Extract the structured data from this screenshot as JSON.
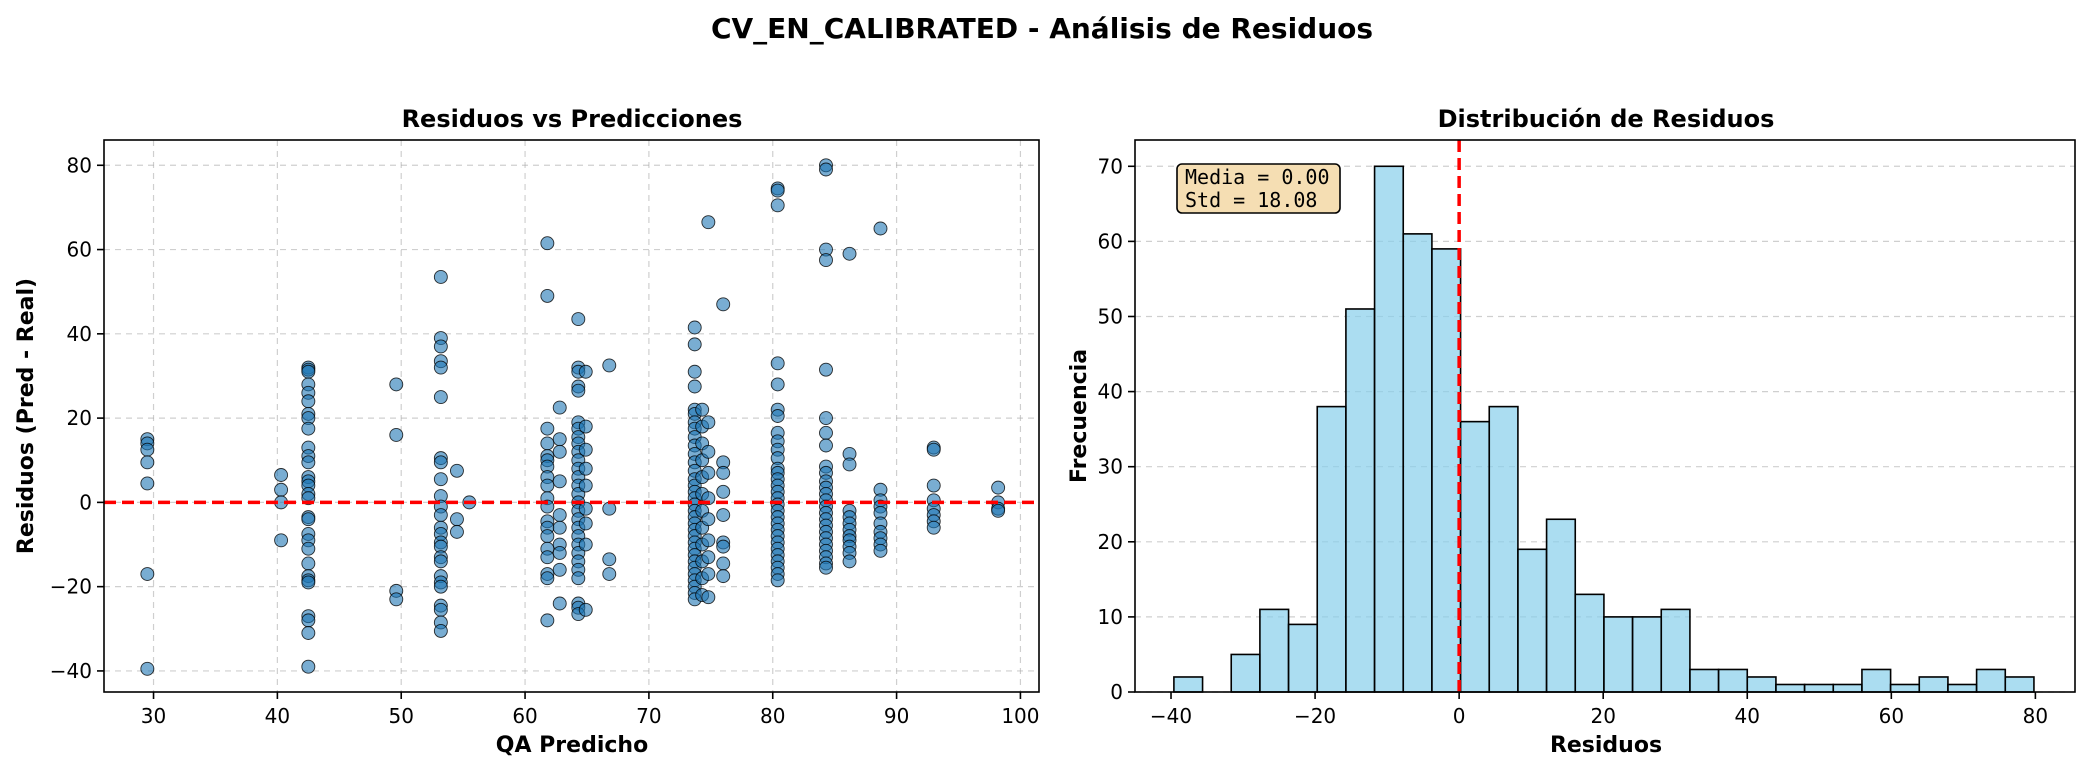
{
  "figure": {
    "suptitle": "CV_EN_CALIBRATED - Análisis de Residuos"
  },
  "colors": {
    "scatter": "#1f77b4",
    "hist_fill": "#87CEEB",
    "zero_line": "#ff0000",
    "stats_box": "#f5deb3"
  },
  "chart_data": [
    {
      "type": "scatter",
      "title": "Residuos vs Predicciones",
      "xlabel": "QA Predicho",
      "ylabel": "Residuos (Pred - Real)",
      "xlim": [
        26,
        101.5
      ],
      "ylim": [
        -45,
        86
      ],
      "xticks": [
        30,
        40,
        50,
        60,
        70,
        80,
        90,
        100
      ],
      "xtick_labels": [
        "30",
        "40",
        "50",
        "60",
        "70",
        "80",
        "90",
        "100"
      ],
      "yticks": [
        -40,
        -20,
        0,
        20,
        40,
        60,
        80
      ],
      "ytick_labels": [
        "−40",
        "−20",
        "0",
        "20",
        "40",
        "60",
        "80"
      ],
      "grid": true,
      "reference_line": {
        "y": 0,
        "style": "dashed",
        "color": "#ff0000"
      },
      "points": [
        [
          29.5,
          15
        ],
        [
          29.5,
          14
        ],
        [
          29.5,
          12.5
        ],
        [
          29.5,
          9.5
        ],
        [
          29.5,
          4.5
        ],
        [
          29.5,
          -17
        ],
        [
          29.5,
          -39.5
        ],
        [
          40.3,
          6.5
        ],
        [
          40.3,
          3
        ],
        [
          40.3,
          0
        ],
        [
          40.3,
          -9
        ],
        [
          42.5,
          32
        ],
        [
          42.5,
          31.5
        ],
        [
          42.5,
          31
        ],
        [
          42.5,
          28
        ],
        [
          42.5,
          26
        ],
        [
          42.5,
          24
        ],
        [
          42.5,
          21
        ],
        [
          42.5,
          20
        ],
        [
          42.5,
          17.5
        ],
        [
          42.5,
          13
        ],
        [
          42.5,
          11
        ],
        [
          42.5,
          9.5
        ],
        [
          42.5,
          6
        ],
        [
          42.5,
          5
        ],
        [
          42.5,
          4
        ],
        [
          42.5,
          2
        ],
        [
          42.5,
          1
        ],
        [
          42.5,
          -3.5
        ],
        [
          42.5,
          -4
        ],
        [
          42.5,
          -7.5
        ],
        [
          42.5,
          -9
        ],
        [
          42.5,
          -11
        ],
        [
          42.5,
          -14.5
        ],
        [
          42.5,
          -17.5
        ],
        [
          42.5,
          -18.5
        ],
        [
          42.5,
          -19
        ],
        [
          42.5,
          -27
        ],
        [
          42.5,
          -28
        ],
        [
          42.5,
          -31
        ],
        [
          42.5,
          -39
        ],
        [
          49.6,
          28
        ],
        [
          49.6,
          16
        ],
        [
          49.6,
          -21
        ],
        [
          49.6,
          -23
        ],
        [
          53.2,
          53.5
        ],
        [
          53.2,
          39
        ],
        [
          53.2,
          37
        ],
        [
          53.2,
          33.5
        ],
        [
          53.2,
          32
        ],
        [
          53.2,
          25
        ],
        [
          53.2,
          10.5
        ],
        [
          53.2,
          9.5
        ],
        [
          53.2,
          5.5
        ],
        [
          53.2,
          1.5
        ],
        [
          53.2,
          -1
        ],
        [
          53.2,
          -3
        ],
        [
          53.2,
          -6
        ],
        [
          53.2,
          -7.5
        ],
        [
          53.2,
          -9.5
        ],
        [
          53.2,
          -10.5
        ],
        [
          53.2,
          -13
        ],
        [
          53.2,
          -14
        ],
        [
          53.2,
          -17.5
        ],
        [
          53.2,
          -19
        ],
        [
          53.2,
          -20
        ],
        [
          53.2,
          -24.5
        ],
        [
          53.2,
          -25.5
        ],
        [
          53.2,
          -28.5
        ],
        [
          53.2,
          -30.5
        ],
        [
          54.5,
          7.5
        ],
        [
          54.5,
          -4
        ],
        [
          54.5,
          -7
        ],
        [
          55.5,
          0
        ],
        [
          61.8,
          61.5
        ],
        [
          61.8,
          49
        ],
        [
          61.8,
          17.5
        ],
        [
          61.8,
          14
        ],
        [
          61.8,
          11
        ],
        [
          61.8,
          10
        ],
        [
          61.8,
          8.5
        ],
        [
          61.8,
          6
        ],
        [
          61.8,
          4
        ],
        [
          61.8,
          1
        ],
        [
          61.8,
          -1
        ],
        [
          61.8,
          -4.5
        ],
        [
          61.8,
          -6
        ],
        [
          61.8,
          -8
        ],
        [
          61.8,
          -11
        ],
        [
          61.8,
          -13
        ],
        [
          61.8,
          -17
        ],
        [
          61.8,
          -18
        ],
        [
          61.8,
          -28
        ],
        [
          62.8,
          22.5
        ],
        [
          62.8,
          15
        ],
        [
          62.8,
          12
        ],
        [
          62.8,
          5
        ],
        [
          62.8,
          -3
        ],
        [
          62.8,
          -6
        ],
        [
          62.8,
          -10
        ],
        [
          62.8,
          -12
        ],
        [
          62.8,
          -16
        ],
        [
          62.8,
          -24
        ],
        [
          64.3,
          43.5
        ],
        [
          64.3,
          32
        ],
        [
          64.3,
          31
        ],
        [
          64.3,
          27.5
        ],
        [
          64.3,
          26.5
        ],
        [
          64.3,
          19
        ],
        [
          64.3,
          17.5
        ],
        [
          64.3,
          15.5
        ],
        [
          64.3,
          14
        ],
        [
          64.3,
          12
        ],
        [
          64.3,
          10
        ],
        [
          64.3,
          8
        ],
        [
          64.3,
          6
        ],
        [
          64.3,
          4
        ],
        [
          64.3,
          2
        ],
        [
          64.3,
          0
        ],
        [
          64.3,
          -2
        ],
        [
          64.3,
          -4
        ],
        [
          64.3,
          -6
        ],
        [
          64.3,
          -8
        ],
        [
          64.3,
          -10
        ],
        [
          64.3,
          -12
        ],
        [
          64.3,
          -14
        ],
        [
          64.3,
          -16
        ],
        [
          64.3,
          -18
        ],
        [
          64.3,
          -24
        ],
        [
          64.3,
          -25
        ],
        [
          64.3,
          -26.5
        ],
        [
          64.9,
          31
        ],
        [
          64.9,
          18
        ],
        [
          64.9,
          12.5
        ],
        [
          64.9,
          8
        ],
        [
          64.9,
          4
        ],
        [
          64.9,
          -1.5
        ],
        [
          64.9,
          -5
        ],
        [
          64.9,
          -10
        ],
        [
          64.9,
          -25.5
        ],
        [
          66.8,
          32.5
        ],
        [
          66.8,
          -1.5
        ],
        [
          66.8,
          -13.5
        ],
        [
          66.8,
          -17
        ],
        [
          73.7,
          41.5
        ],
        [
          73.7,
          37.5
        ],
        [
          73.7,
          31
        ],
        [
          73.7,
          27.5
        ],
        [
          73.7,
          22
        ],
        [
          73.7,
          21
        ],
        [
          73.7,
          19
        ],
        [
          73.7,
          17.5
        ],
        [
          73.7,
          15.5
        ],
        [
          73.7,
          13.5
        ],
        [
          73.7,
          11.5
        ],
        [
          73.7,
          9.5
        ],
        [
          73.7,
          7.5
        ],
        [
          73.7,
          5.5
        ],
        [
          73.7,
          4
        ],
        [
          73.7,
          2.5
        ],
        [
          73.7,
          1
        ],
        [
          73.7,
          -0.5
        ],
        [
          73.7,
          -2
        ],
        [
          73.7,
          -3.5
        ],
        [
          73.7,
          -5
        ],
        [
          73.7,
          -6.5
        ],
        [
          73.7,
          -8
        ],
        [
          73.7,
          -9.5
        ],
        [
          73.7,
          -11
        ],
        [
          73.7,
          -12.5
        ],
        [
          73.7,
          -14
        ],
        [
          73.7,
          -15.5
        ],
        [
          73.7,
          -17
        ],
        [
          73.7,
          -18.5
        ],
        [
          73.7,
          -20
        ],
        [
          73.7,
          -21.5
        ],
        [
          73.7,
          -23
        ],
        [
          74.3,
          22
        ],
        [
          74.3,
          18
        ],
        [
          74.3,
          14
        ],
        [
          74.3,
          10
        ],
        [
          74.3,
          6
        ],
        [
          74.3,
          2
        ],
        [
          74.3,
          -2
        ],
        [
          74.3,
          -6
        ],
        [
          74.3,
          -10
        ],
        [
          74.3,
          -14
        ],
        [
          74.3,
          -18
        ],
        [
          74.3,
          -22
        ],
        [
          74.8,
          66.5
        ],
        [
          74.8,
          19
        ],
        [
          74.8,
          12
        ],
        [
          74.8,
          7
        ],
        [
          74.8,
          1
        ],
        [
          74.8,
          -4
        ],
        [
          74.8,
          -9
        ],
        [
          74.8,
          -13
        ],
        [
          74.8,
          -17
        ],
        [
          74.8,
          -22.5
        ],
        [
          76.0,
          47
        ],
        [
          76.0,
          9.5
        ],
        [
          76.0,
          7
        ],
        [
          76.0,
          2.5
        ],
        [
          76.0,
          -3
        ],
        [
          76.0,
          -9.5
        ],
        [
          76.0,
          -10.5
        ],
        [
          76.0,
          -14.5
        ],
        [
          76.0,
          -17.5
        ],
        [
          80.4,
          74.5
        ],
        [
          80.4,
          74
        ],
        [
          80.4,
          70.5
        ],
        [
          80.4,
          33
        ],
        [
          80.4,
          28
        ],
        [
          80.4,
          22
        ],
        [
          80.4,
          20.5
        ],
        [
          80.4,
          16.5
        ],
        [
          80.4,
          14.5
        ],
        [
          80.4,
          12.5
        ],
        [
          80.4,
          10.5
        ],
        [
          80.4,
          8
        ],
        [
          80.4,
          7
        ],
        [
          80.4,
          5.5
        ],
        [
          80.4,
          4
        ],
        [
          80.4,
          2.5
        ],
        [
          80.4,
          1
        ],
        [
          80.4,
          -0.5
        ],
        [
          80.4,
          -2
        ],
        [
          80.4,
          -3.5
        ],
        [
          80.4,
          -5
        ],
        [
          80.4,
          -6.5
        ],
        [
          80.4,
          -8
        ],
        [
          80.4,
          -9.5
        ],
        [
          80.4,
          -11
        ],
        [
          80.4,
          -12.5
        ],
        [
          80.4,
          -14
        ],
        [
          80.4,
          -15.5
        ],
        [
          80.4,
          -17
        ],
        [
          80.4,
          -18.5
        ],
        [
          84.3,
          80
        ],
        [
          84.3,
          79
        ],
        [
          84.3,
          60
        ],
        [
          84.3,
          57.5
        ],
        [
          84.3,
          31.5
        ],
        [
          84.3,
          20
        ],
        [
          84.3,
          16.5
        ],
        [
          84.3,
          13.5
        ],
        [
          84.3,
          8.5
        ],
        [
          84.3,
          7
        ],
        [
          84.3,
          5
        ],
        [
          84.3,
          3.5
        ],
        [
          84.3,
          2
        ],
        [
          84.3,
          0.5
        ],
        [
          84.3,
          -1
        ],
        [
          84.3,
          -2.5
        ],
        [
          84.3,
          -4
        ],
        [
          84.3,
          -5.5
        ],
        [
          84.3,
          -7
        ],
        [
          84.3,
          -8.5
        ],
        [
          84.3,
          -10
        ],
        [
          84.3,
          -11.5
        ],
        [
          84.3,
          -13
        ],
        [
          84.3,
          -14.5
        ],
        [
          84.3,
          -15.5
        ],
        [
          86.2,
          59
        ],
        [
          86.2,
          11.5
        ],
        [
          86.2,
          9
        ],
        [
          86.2,
          -2
        ],
        [
          86.2,
          -3.5
        ],
        [
          86.2,
          -5
        ],
        [
          86.2,
          -6.5
        ],
        [
          86.2,
          -8
        ],
        [
          86.2,
          -9
        ],
        [
          86.2,
          -10.5
        ],
        [
          86.2,
          -12
        ],
        [
          86.2,
          -14
        ],
        [
          88.7,
          65
        ],
        [
          88.7,
          3
        ],
        [
          88.7,
          0.5
        ],
        [
          88.7,
          -1
        ],
        [
          88.7,
          -2.5
        ],
        [
          88.7,
          -5
        ],
        [
          88.7,
          -7
        ],
        [
          88.7,
          -8.5
        ],
        [
          88.7,
          -10
        ],
        [
          88.7,
          -11.5
        ],
        [
          93.0,
          13
        ],
        [
          93.0,
          12.5
        ],
        [
          93.0,
          4
        ],
        [
          93.0,
          0.5
        ],
        [
          93.0,
          -1.5
        ],
        [
          93.0,
          -3
        ],
        [
          93.0,
          -4.5
        ],
        [
          93.0,
          -6
        ],
        [
          98.2,
          3.5
        ],
        [
          98.2,
          0
        ],
        [
          98.2,
          -1.5
        ],
        [
          98.2,
          -2
        ]
      ]
    },
    {
      "type": "bar",
      "title": "Distribución de Residuos",
      "xlabel": "Residuos",
      "ylabel": "Frecuencia",
      "xlim": [
        -45,
        85.5
      ],
      "ylim": [
        0,
        73.5
      ],
      "xticks": [
        -40,
        -20,
        0,
        20,
        40,
        60,
        80
      ],
      "xtick_labels": [
        "−40",
        "−20",
        "0",
        "20",
        "40",
        "60",
        "80"
      ],
      "yticks": [
        0,
        10,
        20,
        30,
        40,
        50,
        60,
        70
      ],
      "ytick_labels": [
        "0",
        "10",
        "20",
        "30",
        "40",
        "50",
        "60",
        "70"
      ],
      "grid": true,
      "bin_start": -39.6,
      "bin_width": 3.98,
      "values": [
        2,
        0,
        5,
        11,
        9,
        38,
        51,
        70,
        61,
        59,
        36,
        38,
        19,
        23,
        13,
        10,
        10,
        11,
        3,
        3,
        2,
        1,
        1,
        1,
        3,
        1,
        2,
        1,
        3,
        2
      ],
      "reference_line": {
        "x": 0,
        "style": "dashed",
        "color": "#ff0000"
      },
      "stats_text": [
        "Media = 0.00",
        "Std = 18.08"
      ],
      "stats_box_position": "top-left"
    }
  ]
}
